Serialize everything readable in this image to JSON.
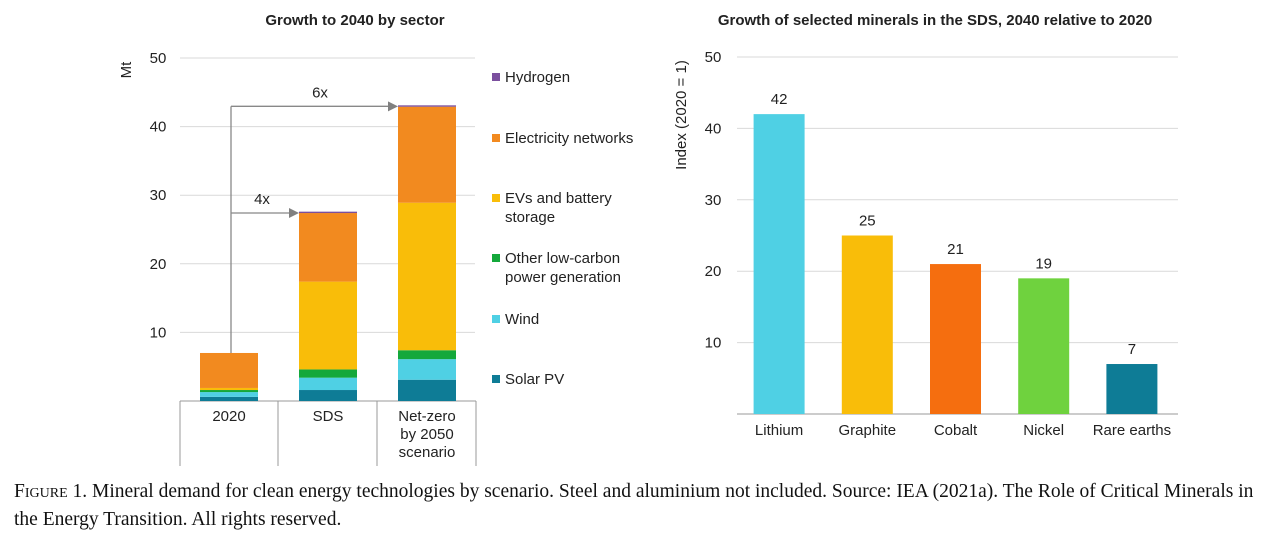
{
  "chart_data": [
    {
      "type": "bar",
      "stacked": true,
      "title": "Growth to 2040 by sector",
      "ylabel": "Mt",
      "ylim": [
        0,
        50
      ],
      "yticks": [
        10,
        20,
        30,
        40,
        50
      ],
      "grid": true,
      "legend_position": "right",
      "categories": [
        [
          "2020"
        ],
        [
          "SDS"
        ],
        [
          "Net-zero",
          "by 2050",
          "scenario"
        ]
      ],
      "series": [
        {
          "name": "Solar PV",
          "color": "#0e7c96",
          "values": [
            0.6,
            1.6,
            3.1
          ]
        },
        {
          "name": "Wind",
          "color": "#4fd0e4",
          "values": [
            0.7,
            1.8,
            3.0
          ]
        },
        {
          "name": "Other low-carbon power generation",
          "legend_lines": [
            "Other low-carbon",
            "power generation"
          ],
          "color": "#14a83b",
          "values": [
            0.3,
            1.2,
            1.3
          ]
        },
        {
          "name": "EVs and battery storage",
          "legend_lines": [
            "EVs and battery",
            "storage"
          ],
          "color": "#f9bd09",
          "values": [
            0.3,
            12.8,
            21.5
          ]
        },
        {
          "name": "Electricity networks",
          "color": "#f28a1f",
          "values": [
            5.1,
            10.0,
            14.0
          ]
        },
        {
          "name": "Hydrogen",
          "color": "#7b4f9e",
          "values": [
            0.0,
            0.2,
            0.2
          ]
        }
      ],
      "annotations": [
        {
          "label": "6x",
          "from": "2020",
          "to": [
            "Net-zero",
            "by 2050",
            "scenario"
          ]
        },
        {
          "label": "4x",
          "from": "2020",
          "to": [
            "SDS"
          ]
        }
      ]
    },
    {
      "type": "bar",
      "title": "Growth of selected minerals in the SDS, 2040 relative to 2020",
      "ylabel": "Index (2020 = 1)",
      "ylim": [
        0,
        50
      ],
      "yticks": [
        10,
        20,
        30,
        40,
        50
      ],
      "grid": true,
      "categories": [
        "Lithium",
        "Graphite",
        "Cobalt",
        "Nickel",
        "Rare earths"
      ],
      "values": [
        42,
        25,
        21,
        19,
        7
      ],
      "value_labels": [
        "42",
        "25",
        "21",
        "19",
        "7"
      ],
      "colors": [
        "#4fd0e4",
        "#f9bd09",
        "#f56e0f",
        "#6fd23e",
        "#0e7c96"
      ]
    }
  ],
  "caption": {
    "lead": "Figure 1.",
    "text": " Mineral demand for clean energy technologies by scenario. Steel and aluminium not included. Source: IEA (2021a). The Role of Critical Minerals in the Energy Transition. All rights reserved."
  }
}
